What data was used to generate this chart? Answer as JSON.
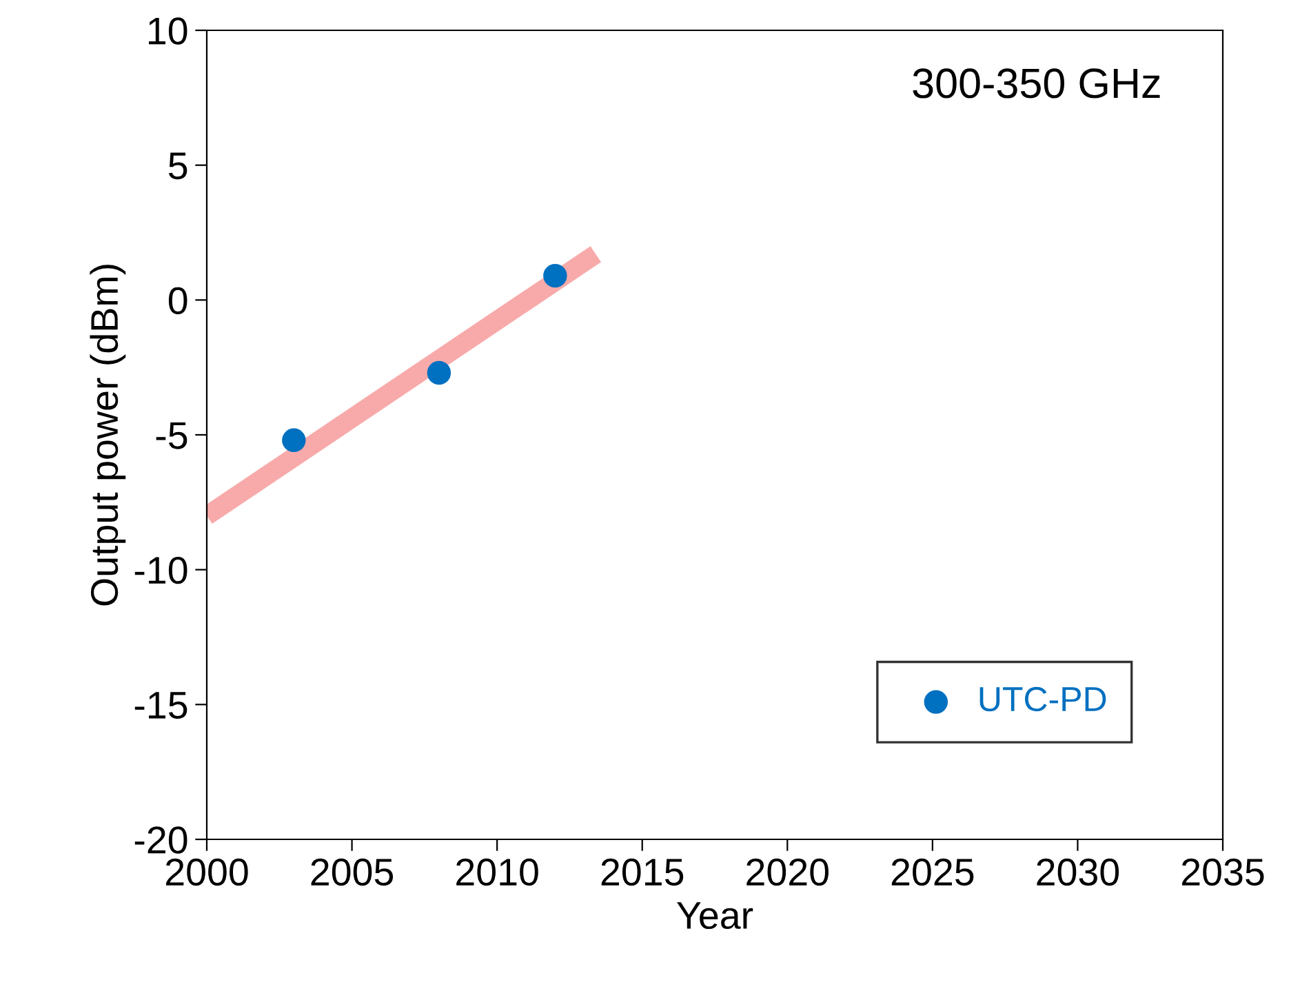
{
  "chart_data": {
    "type": "scatter",
    "xlabel": "Year",
    "ylabel": "Output power (dBm)",
    "annotations": [
      "300-350 GHz"
    ],
    "xlim": [
      2000,
      2035
    ],
    "xticks": [
      2000,
      2005,
      2010,
      2015,
      2020,
      2025,
      2030,
      2035
    ],
    "ylim": [
      -20,
      10
    ],
    "yticks": [
      -20,
      -15,
      -10,
      -5,
      0,
      5,
      10
    ],
    "legend": "bottom right",
    "series": [
      {
        "type": "line",
        "marker": "none",
        "color": "#f8aaaa",
        "x": [
          2000,
          2013.4
        ],
        "values": [
          -8.0,
          1.7
        ]
      },
      {
        "name": "UTC-PD",
        "marker": "circle",
        "color": "#0070c0",
        "x": [
          2003,
          2008,
          2012
        ],
        "values": [
          -5.2,
          -2.7,
          0.9
        ]
      }
    ]
  }
}
